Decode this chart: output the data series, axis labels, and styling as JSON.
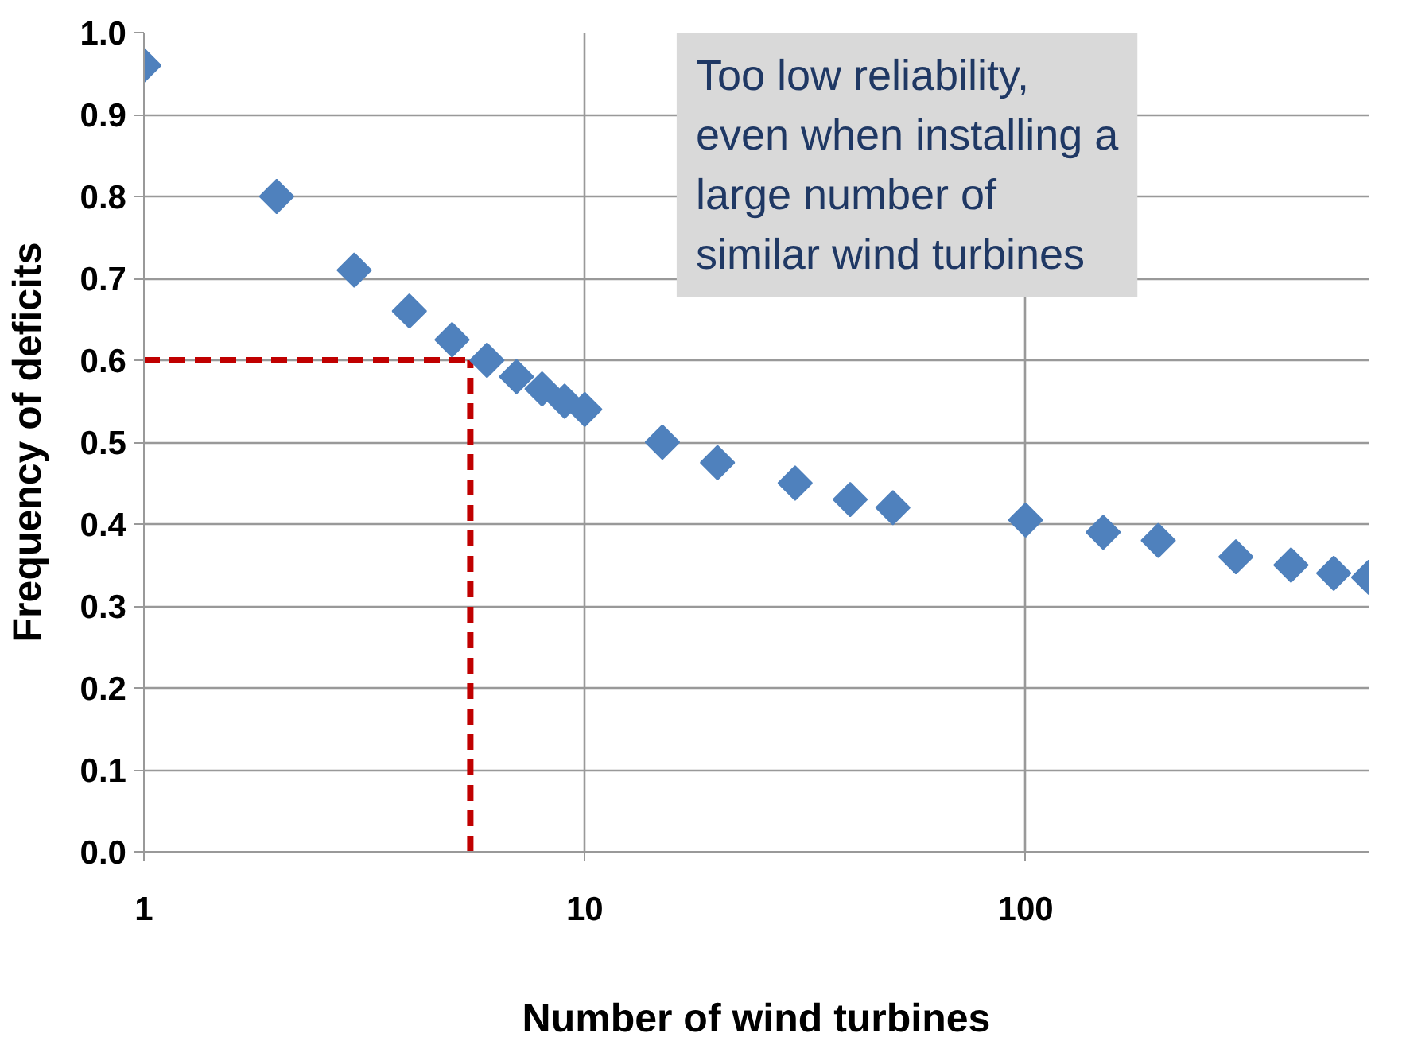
{
  "chart_data": {
    "type": "scatter",
    "xlabel": "Number of wind turbines",
    "ylabel": "Frequency of deficits",
    "x": [
      1,
      2,
      3,
      4,
      5,
      6,
      7,
      8,
      9,
      10,
      15,
      20,
      30,
      40,
      50,
      100,
      150,
      200,
      300,
      400,
      500,
      600
    ],
    "series": [
      {
        "color": "#4f81bd",
        "values": [
          0.96,
          0.8,
          0.71,
          0.66,
          0.625,
          0.6,
          0.58,
          0.565,
          0.55,
          0.54,
          0.5,
          0.475,
          0.45,
          0.43,
          0.42,
          0.405,
          0.39,
          0.38,
          0.36,
          0.35,
          0.34,
          0.335
        ]
      }
    ],
    "marker": "diamond",
    "log": "x",
    "grid": true,
    "xlim": [
      1,
      600
    ],
    "xticks": [
      1,
      10,
      100
    ],
    "ylim": [
      0,
      1.0
    ],
    "yticks": [
      {
        "value": 0,
        "label": "0.0"
      },
      0.1,
      0.2,
      0.3,
      0.4,
      0.5,
      0.6,
      0.7,
      0.8,
      0.9,
      {
        "value": 1.0,
        "label": "1.0"
      }
    ],
    "ref_lines": [
      {
        "axis": "x",
        "value": 5.5,
        "color": "#c00000",
        "line_style": "dashed"
      },
      {
        "axis": "y",
        "value": 0.6,
        "color": "#c00000",
        "line_style": "dashed"
      }
    ],
    "annotations": [
      "Too low reliability, even when installing a large number of similar wind turbines"
    ]
  }
}
